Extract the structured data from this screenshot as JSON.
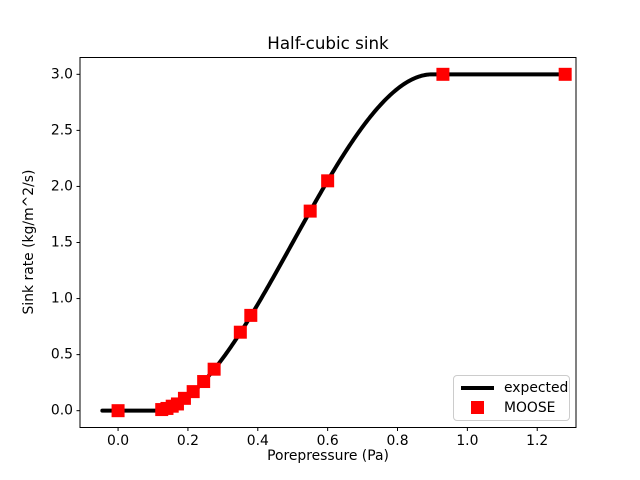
{
  "figure": {
    "background_color": "#ffffff",
    "title": "Half-cubic sink"
  },
  "legend": {
    "border_color": "#cccccc",
    "entries": [
      {
        "label": "expected",
        "sample": "thick-line",
        "color": "#000000"
      },
      {
        "label": "MOOSE",
        "sample": "square",
        "color": "#ff0000"
      }
    ]
  },
  "chart_data": {
    "type": "line",
    "title": "Half-cubic sink",
    "xlabel": "Porepressure (Pa)",
    "ylabel": "Sink rate (kg/m^2/s)",
    "xlim": [
      -0.109,
      1.311
    ],
    "ylim": [
      -0.15,
      3.15
    ],
    "xticks": [
      0.0,
      0.2,
      0.4,
      0.6,
      0.8,
      1.0,
      1.2
    ],
    "yticks": [
      0.0,
      0.5,
      1.0,
      1.5,
      2.0,
      2.5,
      3.0
    ],
    "grid": false,
    "legend_position": "lower right",
    "series": [
      {
        "name": "expected",
        "type": "line",
        "color": "#000000",
        "linewidth": 4,
        "curve": {
          "kind": "cubic-smoothstep",
          "zero_at": 0.1,
          "full_at": 0.9,
          "max": 3.0,
          "x_start": -0.045,
          "x_end": 1.28
        },
        "points": [
          [
            -0.045,
            0.0
          ],
          [
            0.1,
            0.0
          ],
          [
            0.2,
            0.13
          ],
          [
            0.3,
            0.47
          ],
          [
            0.4,
            0.95
          ],
          [
            0.5,
            1.5
          ],
          [
            0.6,
            2.05
          ],
          [
            0.7,
            2.53
          ],
          [
            0.8,
            2.87
          ],
          [
            0.9,
            3.0
          ],
          [
            1.28,
            3.0
          ]
        ]
      },
      {
        "name": "MOOSE",
        "type": "scatter",
        "marker": "square",
        "color": "#ff0000",
        "markersize": 13,
        "points": [
          [
            0.0,
            0.0
          ],
          [
            0.125,
            0.01
          ],
          [
            0.14,
            0.02
          ],
          [
            0.155,
            0.04
          ],
          [
            0.17,
            0.06
          ],
          [
            0.19,
            0.11
          ],
          [
            0.215,
            0.17
          ],
          [
            0.245,
            0.26
          ],
          [
            0.275,
            0.37
          ],
          [
            0.35,
            0.7
          ],
          [
            0.38,
            0.85
          ],
          [
            0.55,
            1.78
          ],
          [
            0.6,
            2.05
          ],
          [
            0.93,
            3.0
          ],
          [
            1.28,
            3.0
          ]
        ]
      }
    ]
  }
}
